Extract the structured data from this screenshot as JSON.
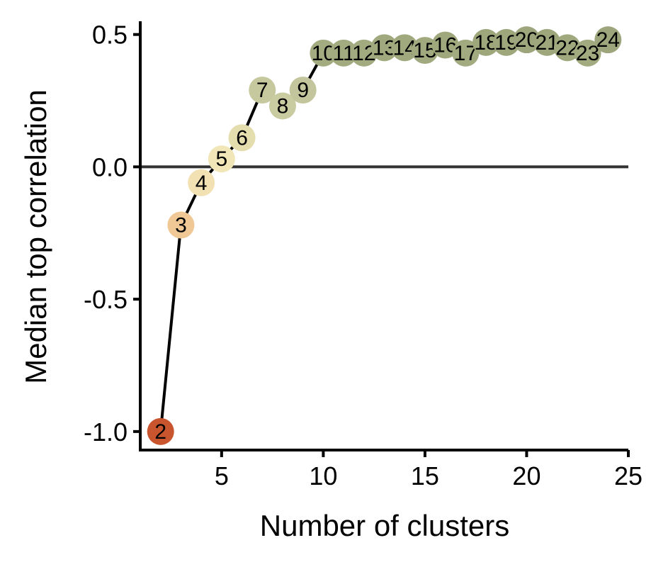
{
  "chart_data": {
    "type": "scatter",
    "xlabel": "Number of clusters",
    "ylabel": "Median top correlation",
    "xlim": [
      1,
      25
    ],
    "ylim": [
      -1.07,
      0.55
    ],
    "xticks": [
      5,
      10,
      15,
      20,
      25
    ],
    "xtick_labels": [
      "5",
      "10",
      "15",
      "20",
      "25"
    ],
    "yticks": [
      -1.0,
      -0.5,
      0.0,
      0.5
    ],
    "ytick_labels": [
      "-1.0",
      "-0.5",
      "0.0",
      "0.5"
    ],
    "hline": 0.0,
    "legend": "none",
    "grid": false,
    "points": [
      {
        "x": 2,
        "y": -1.0,
        "label": "2",
        "color": "#C8552E"
      },
      {
        "x": 3,
        "y": -0.22,
        "label": "3",
        "color": "#EFC896"
      },
      {
        "x": 4,
        "y": -0.06,
        "label": "4",
        "color": "#F2E2B3"
      },
      {
        "x": 5,
        "y": 0.03,
        "label": "5",
        "color": "#F1E6B8"
      },
      {
        "x": 6,
        "y": 0.11,
        "label": "6",
        "color": "#E4DDAE"
      },
      {
        "x": 7,
        "y": 0.29,
        "label": "7",
        "color": "#C6C89E"
      },
      {
        "x": 8,
        "y": 0.23,
        "label": "8",
        "color": "#C9CBA0"
      },
      {
        "x": 9,
        "y": 0.29,
        "label": "9",
        "color": "#C3C69C"
      },
      {
        "x": 10,
        "y": 0.43,
        "label": "10",
        "color": "#A3AB81"
      },
      {
        "x": 11,
        "y": 0.43,
        "label": "11",
        "color": "#A2AA80"
      },
      {
        "x": 12,
        "y": 0.43,
        "label": "12",
        "color": "#A2AA80"
      },
      {
        "x": 13,
        "y": 0.45,
        "label": "13",
        "color": "#A0A87E"
      },
      {
        "x": 14,
        "y": 0.45,
        "label": "14",
        "color": "#A0A87E"
      },
      {
        "x": 15,
        "y": 0.44,
        "label": "15",
        "color": "#A1A97F"
      },
      {
        "x": 16,
        "y": 0.46,
        "label": "16",
        "color": "#9FA77D"
      },
      {
        "x": 17,
        "y": 0.43,
        "label": "17",
        "color": "#A2AA80"
      },
      {
        "x": 18,
        "y": 0.47,
        "label": "18",
        "color": "#9EA67C"
      },
      {
        "x": 19,
        "y": 0.47,
        "label": "19",
        "color": "#9EA67C"
      },
      {
        "x": 20,
        "y": 0.48,
        "label": "20",
        "color": "#9CA57B"
      },
      {
        "x": 21,
        "y": 0.47,
        "label": "21",
        "color": "#9EA67C"
      },
      {
        "x": 22,
        "y": 0.45,
        "label": "22",
        "color": "#A0A87E"
      },
      {
        "x": 23,
        "y": 0.43,
        "label": "23",
        "color": "#A2AA80"
      },
      {
        "x": 24,
        "y": 0.48,
        "label": "24",
        "color": "#9CA57B"
      }
    ]
  }
}
